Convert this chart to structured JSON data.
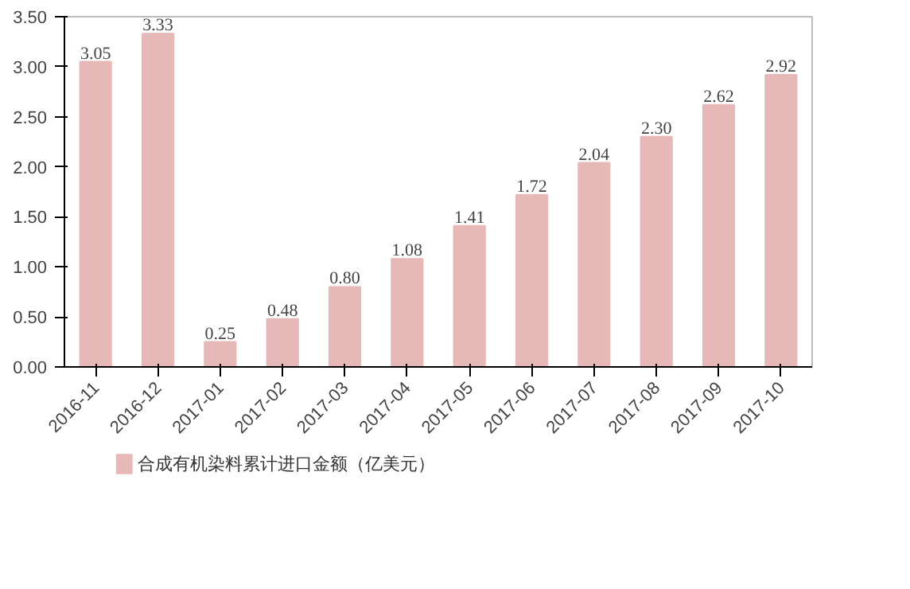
{
  "chart_data": {
    "type": "bar",
    "categories": [
      "2016-11",
      "2016-12",
      "2017-01",
      "2017-02",
      "2017-03",
      "2017-04",
      "2017-05",
      "2017-06",
      "2017-07",
      "2017-08",
      "2017-09",
      "2017-10"
    ],
    "series": [
      {
        "name": "合成有机染料累计进口金额（亿美元）",
        "color": "#e6b8b7",
        "values": [
          3.05,
          3.33,
          0.25,
          0.48,
          0.8,
          1.08,
          1.41,
          1.72,
          2.04,
          2.3,
          2.62,
          2.92
        ],
        "value_labels": [
          "3.05",
          "3.33",
          "0.25",
          "0.48",
          "0.80",
          "1.08",
          "1.41",
          "1.72",
          "2.04",
          "2.30",
          "2.62",
          "2.92"
        ]
      }
    ],
    "ylim": [
      0,
      3.5
    ],
    "yticks": [
      {
        "value": 0,
        "label": "0.00"
      },
      {
        "value": 0.5,
        "label": "0.50"
      },
      {
        "value": 1,
        "label": "1.00"
      },
      {
        "value": 1.5,
        "label": "1.50"
      },
      {
        "value": 2,
        "label": "2.00"
      },
      {
        "value": 2.5,
        "label": "2.50"
      },
      {
        "value": 3,
        "label": "3.00"
      },
      {
        "value": 3.5,
        "label": "3.50"
      }
    ],
    "grid": false,
    "legend": "bottom"
  }
}
